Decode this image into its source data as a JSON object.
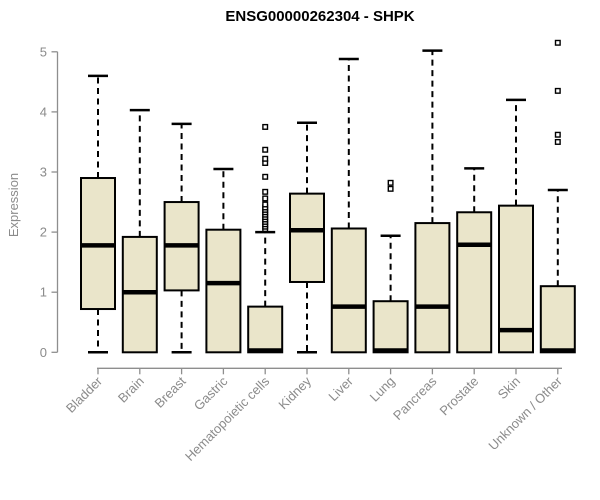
{
  "figure": {
    "title": "ENSG00000262304 - SHPK",
    "ylabel": "Expression"
  },
  "chart_data": {
    "type": "box",
    "title": "ENSG00000262304 - SHPK",
    "xlabel": "",
    "ylabel": "Expression",
    "ylim": [
      0,
      5.2
    ],
    "yticks": [
      0,
      1,
      2,
      3,
      4,
      5
    ],
    "grid": false,
    "categories": [
      "Bladder",
      "Brain",
      "Breast",
      "Gastric",
      "Hematopoietic cells",
      "Kidney",
      "Liver",
      "Lung",
      "Pancreas",
      "Prostate",
      "Skin",
      "Unknown / Other"
    ],
    "boxes": [
      {
        "category": "Bladder",
        "whisker_low": 0,
        "q1": 0.72,
        "median": 1.78,
        "q3": 2.9,
        "whisker_high": 4.6,
        "outliers": []
      },
      {
        "category": "Brain",
        "whisker_low": 0,
        "q1": 0.0,
        "median": 1.0,
        "q3": 1.92,
        "whisker_high": 4.03,
        "outliers": []
      },
      {
        "category": "Breast",
        "whisker_low": 0,
        "q1": 1.03,
        "median": 1.78,
        "q3": 2.5,
        "whisker_high": 3.8,
        "outliers": []
      },
      {
        "category": "Gastric",
        "whisker_low": 0,
        "q1": 0.0,
        "median": 1.15,
        "q3": 2.04,
        "whisker_high": 3.05,
        "outliers": []
      },
      {
        "category": "Hematopoietic cells",
        "whisker_low": 0,
        "q1": 0.0,
        "median": 0.03,
        "q3": 0.76,
        "whisker_high": 2.0,
        "outliers": [
          2.05,
          2.09,
          2.13,
          2.17,
          2.21,
          2.25,
          2.29,
          2.33,
          2.37,
          2.41,
          2.46,
          2.56,
          2.67,
          2.92,
          3.15,
          3.22,
          3.37,
          3.75
        ]
      },
      {
        "category": "Kidney",
        "whisker_low": 0,
        "q1": 1.17,
        "median": 2.03,
        "q3": 2.64,
        "whisker_high": 3.82,
        "outliers": []
      },
      {
        "category": "Liver",
        "whisker_low": 0,
        "q1": 0.0,
        "median": 0.76,
        "q3": 2.06,
        "whisker_high": 4.88,
        "outliers": []
      },
      {
        "category": "Lung",
        "whisker_low": 0,
        "q1": 0.0,
        "median": 0.03,
        "q3": 0.85,
        "whisker_high": 1.94,
        "outliers": [
          2.72,
          2.82
        ]
      },
      {
        "category": "Pancreas",
        "whisker_low": 0,
        "q1": 0.0,
        "median": 0.76,
        "q3": 2.15,
        "whisker_high": 5.02,
        "outliers": []
      },
      {
        "category": "Prostate",
        "whisker_low": 0,
        "q1": 0.0,
        "median": 1.79,
        "q3": 2.33,
        "whisker_high": 3.06,
        "outliers": []
      },
      {
        "category": "Skin",
        "whisker_low": 0,
        "q1": 0.0,
        "median": 0.37,
        "q3": 2.44,
        "whisker_high": 4.2,
        "outliers": []
      },
      {
        "category": "Unknown / Other",
        "whisker_low": 0,
        "q1": 0.0,
        "median": 0.03,
        "q3": 1.1,
        "whisker_high": 2.7,
        "outliers": [
          3.5,
          3.62,
          4.35,
          5.15
        ]
      }
    ],
    "colors": {
      "box_fill": "#EAE5CA",
      "box_border": "#000000",
      "median": "#000000",
      "whisker": "#000000",
      "outlier_stroke": "#000000",
      "axis": "#8E8E8E",
      "tick_label": "#8B8B8B",
      "title": "#000000",
      "background": "#FFFFFF"
    },
    "legend": null
  }
}
